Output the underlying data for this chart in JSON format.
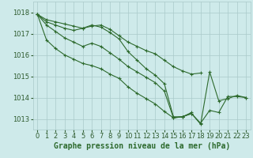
{
  "background_color": "#ceeaea",
  "grid_color": "#aacaca",
  "line_color": "#2d6a2d",
  "marker_color": "#2d6a2d",
  "xlabel": "Graphe pression niveau de la mer (hPa)",
  "xlabel_fontsize": 7,
  "tick_fontsize": 6,
  "ylim": [
    1012.5,
    1018.5
  ],
  "xlim": [
    -0.5,
    23.5
  ],
  "yticks": [
    1013,
    1014,
    1015,
    1016,
    1017,
    1018
  ],
  "xticks": [
    0,
    1,
    2,
    3,
    4,
    5,
    6,
    7,
    8,
    9,
    10,
    11,
    12,
    13,
    14,
    15,
    16,
    17,
    18,
    19,
    20,
    21,
    22,
    23
  ],
  "series": [
    [
      1017.9,
      1017.65,
      1017.55,
      1017.45,
      1017.35,
      1017.25,
      1017.35,
      1017.4,
      1017.2,
      1016.9,
      1016.6,
      1016.4,
      1016.2,
      1016.05,
      1015.75,
      1015.45,
      1015.25,
      1015.1,
      1015.15,
      null,
      null,
      null,
      null,
      null
    ],
    [
      1017.9,
      1017.55,
      1017.4,
      1017.25,
      1017.15,
      1017.25,
      1017.4,
      1017.3,
      1017.05,
      1016.75,
      1016.15,
      1015.75,
      1015.35,
      1015.05,
      1014.65,
      1013.1,
      1013.1,
      1013.3,
      null,
      null,
      null,
      null,
      null,
      null
    ],
    [
      1017.9,
      1017.4,
      1017.1,
      1016.8,
      1016.6,
      1016.4,
      1016.55,
      1016.4,
      1016.1,
      1015.8,
      1015.45,
      1015.2,
      1014.95,
      1014.7,
      1014.3,
      1013.05,
      1013.1,
      1013.25,
      1012.75,
      1015.2,
      1013.85,
      1013.95,
      1014.1,
      1014.0
    ],
    [
      1017.9,
      1016.7,
      1016.3,
      1016.0,
      1015.8,
      1015.6,
      1015.5,
      1015.35,
      1015.1,
      1014.9,
      1014.5,
      1014.2,
      1013.95,
      1013.7,
      1013.35,
      1013.05,
      1013.1,
      1013.25,
      1012.8,
      1013.4,
      1013.3,
      1014.05,
      1014.05,
      1014.0
    ]
  ]
}
